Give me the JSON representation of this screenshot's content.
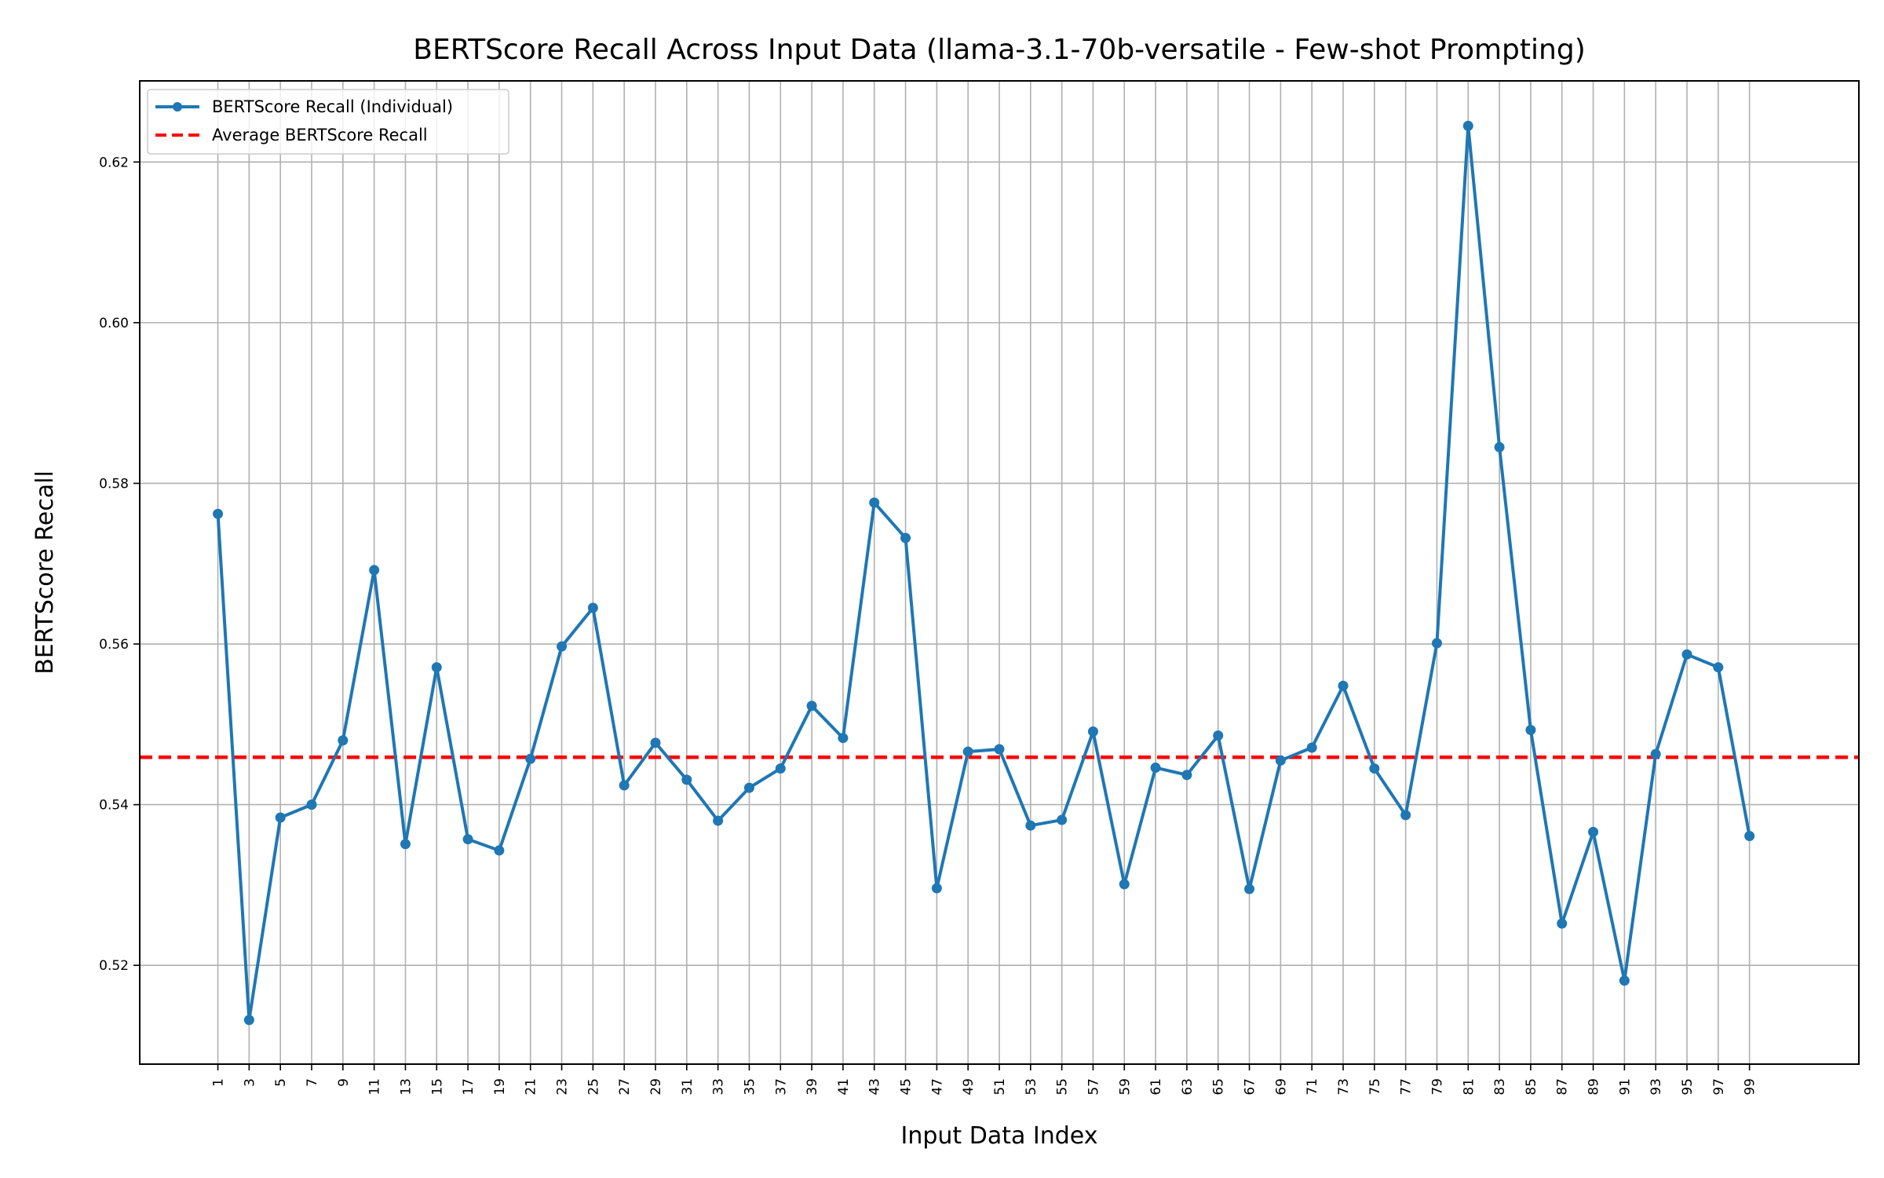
{
  "chart_data": {
    "type": "line",
    "title": "BERTScore Recall Across Input Data (llama-3.1-70b-versatile - Few-shot Prompting)",
    "xlabel": "Input Data Index",
    "ylabel": "BERTScore Recall",
    "x": [
      1,
      3,
      5,
      7,
      9,
      11,
      13,
      15,
      17,
      19,
      21,
      23,
      25,
      27,
      29,
      31,
      33,
      35,
      37,
      39,
      41,
      43,
      45,
      47,
      49,
      51,
      53,
      55,
      57,
      59,
      61,
      63,
      65,
      67,
      69,
      71,
      73,
      75,
      77,
      79,
      81,
      83,
      85,
      87,
      89,
      91,
      93,
      95,
      97,
      99
    ],
    "xtick_labels": [
      "1",
      "3",
      "5",
      "7",
      "9",
      "11",
      "13",
      "15",
      "17",
      "19",
      "21",
      "23",
      "25",
      "27",
      "29",
      "31",
      "33",
      "35",
      "37",
      "39",
      "41",
      "43",
      "45",
      "47",
      "49",
      "51",
      "53",
      "55",
      "57",
      "59",
      "61",
      "63",
      "65",
      "67",
      "69",
      "71",
      "73",
      "75",
      "77",
      "79",
      "81",
      "83",
      "85",
      "87",
      "89",
      "91",
      "93",
      "95",
      "97",
      "99"
    ],
    "xlim": [
      -4,
      106
    ],
    "ylim": [
      0.5077,
      0.6301
    ],
    "yticks": [
      0.52,
      0.54,
      0.56,
      0.58,
      0.6,
      0.62
    ],
    "ytick_labels": [
      "0.52",
      "0.54",
      "0.56",
      "0.58",
      "0.60",
      "0.62"
    ],
    "grid": true,
    "legend_position": "top-left",
    "series": [
      {
        "name": "BERTScore Recall (Individual)",
        "color": "#1f77b4",
        "style": "solid-with-markers",
        "values": [
          0.5762,
          0.5132,
          0.5384,
          0.54,
          0.548,
          0.5692,
          0.5351,
          0.5571,
          0.5357,
          0.5343,
          0.5457,
          0.5597,
          0.5645,
          0.5424,
          0.5477,
          0.5431,
          0.538,
          0.5421,
          0.5445,
          0.5523,
          0.5483,
          0.5776,
          0.5732,
          0.5296,
          0.5466,
          0.5469,
          0.5374,
          0.5381,
          0.5491,
          0.5301,
          0.5446,
          0.5437,
          0.5486,
          0.5295,
          0.5455,
          0.5471,
          0.5548,
          0.5445,
          0.5387,
          0.5601,
          0.6245,
          0.5845,
          0.5493,
          0.5252,
          0.5366,
          0.5181,
          0.5463,
          0.5587,
          0.5571,
          0.5361
        ]
      },
      {
        "name": "Average BERTScore Recall",
        "color": "#ff0000",
        "style": "dashed",
        "value": 0.5459
      }
    ]
  }
}
